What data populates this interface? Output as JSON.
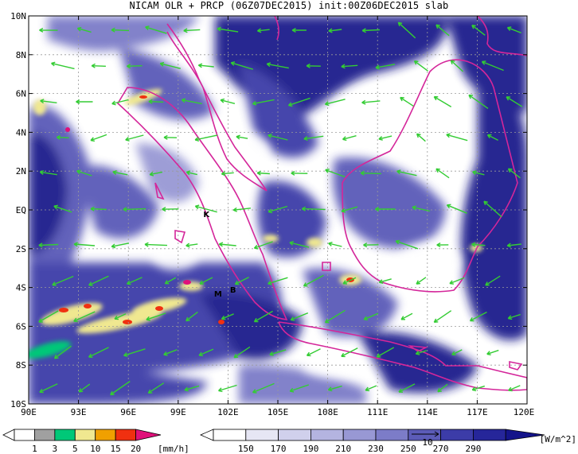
{
  "title": "NICAM OLR + PRCP (06Z07DEC2015) init:00Z06DEC2015 slab",
  "map": {
    "lon_range": [
      90,
      120
    ],
    "lat_range": [
      -10,
      10
    ],
    "x_ticks": [
      "90E",
      "93E",
      "96E",
      "99E",
      "102E",
      "105E",
      "108E",
      "111E",
      "114E",
      "117E",
      "120E"
    ],
    "y_ticks": [
      "10N",
      "8N",
      "6N",
      "4N",
      "2N",
      "EQ",
      "2S",
      "4S",
      "6S",
      "8S",
      "10S"
    ],
    "markers": [
      {
        "label": "K",
        "lon": 100.7,
        "lat": -0.2
      },
      {
        "label": "M",
        "lon": 101.4,
        "lat": -4.3
      },
      {
        "label": "B",
        "lon": 102.3,
        "lat": -4.1
      }
    ],
    "colors": {
      "olr_dark": "#1a1a8c",
      "olr_mid": "#5a5ab8",
      "olr_light": "#c8c8ee",
      "coast": "#d4269a",
      "wind": "#33cc33"
    }
  },
  "prcp_legend": {
    "labels": [
      "1",
      "3",
      "5",
      "10",
      "15",
      "20"
    ],
    "unit": "[mm/h]",
    "colors": [
      "#ffffff",
      "#a0a0a0",
      "#00c878",
      "#f0e890",
      "#f0a000",
      "#f03010",
      "#e0107a"
    ]
  },
  "olr_legend": {
    "labels": [
      "150",
      "170",
      "190",
      "210",
      "230",
      "250",
      "270",
      "290"
    ],
    "unit": "[W/m^2]",
    "vector_label": "10",
    "colors": [
      "#ffffff",
      "#e6e6f4",
      "#d0d0ec",
      "#b4b4e0",
      "#9898d4",
      "#7c7cc8",
      "#5c5cb8",
      "#3c3ca8",
      "#26269a",
      "#14148a"
    ]
  }
}
